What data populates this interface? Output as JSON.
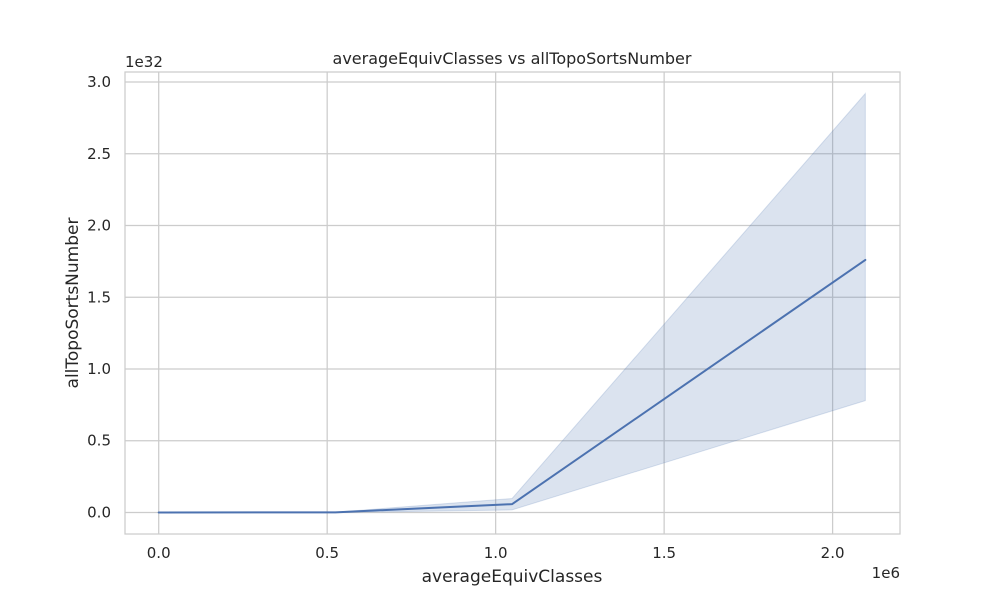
{
  "chart_data": {
    "type": "line",
    "title": "averageEquivClasses vs allTopoSortsNumber",
    "xlabel": "averageEquivClasses",
    "ylabel": "allTopoSortsNumber",
    "x_offset_label": "1e6",
    "y_offset_label": "1e32",
    "xlim": [
      -100000,
      2200000
    ],
    "ylim": [
      -1.5e+31,
      3.07e+32
    ],
    "x_ticks": [
      0,
      500000,
      1000000,
      1500000,
      2000000
    ],
    "x_tick_labels": [
      "0.0",
      "0.5",
      "1.0",
      "1.5",
      "2.0"
    ],
    "y_ticks": [
      0,
      5e+31,
      1e+32,
      1.5e+32,
      2e+32,
      2.5e+32,
      3e+32
    ],
    "y_tick_labels": [
      "0.0",
      "0.5",
      "1.0",
      "1.5",
      "2.0",
      "2.5",
      "3.0"
    ],
    "grid": true,
    "series": [
      {
        "x": [
          0,
          524288,
          1048576,
          2097152
        ],
        "y": [
          0,
          1e+29,
          5.8e+30,
          1.76e+32
        ],
        "ci_lower": [
          0,
          0,
          1.8e+30,
          7.8e+31
        ],
        "ci_upper": [
          0,
          2e+29,
          9.7e+30,
          2.92e+32
        ],
        "color": "#4c72b0"
      }
    ]
  }
}
